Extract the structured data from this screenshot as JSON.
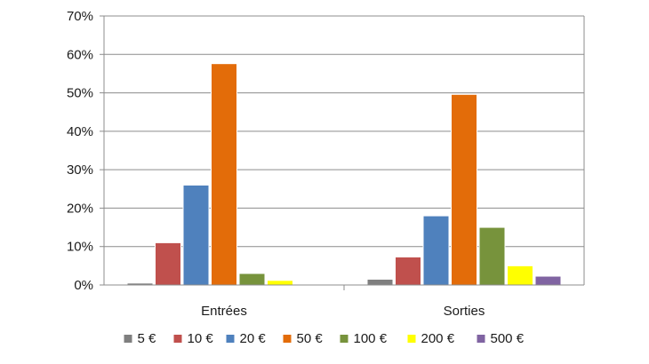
{
  "chart_data": {
    "type": "bar",
    "categories": [
      "Entrées",
      "Sorties"
    ],
    "series": [
      {
        "name": "5 €",
        "color": "#7f7f7f",
        "values": [
          0.5,
          1.5
        ]
      },
      {
        "name": "10 €",
        "color": "#c0504d",
        "values": [
          11,
          7.3
        ]
      },
      {
        "name": "20 €",
        "color": "#4f81bd",
        "values": [
          26,
          18
        ]
      },
      {
        "name": "50 €",
        "color": "#e36c09",
        "values": [
          57.6,
          49.6
        ]
      },
      {
        "name": "100 €",
        "color": "#77933c",
        "values": [
          3,
          15
        ]
      },
      {
        "name": "200 €",
        "color": "#ffff00",
        "values": [
          1.2,
          5
        ]
      },
      {
        "name": "500 €",
        "color": "#8064a2",
        "values": [
          0,
          2.3
        ]
      }
    ],
    "y_ticks": [
      "0%",
      "10%",
      "20%",
      "30%",
      "40%",
      "50%",
      "60%",
      "70%"
    ],
    "ylim": [
      0,
      70
    ],
    "y_unit": "%",
    "grid": true,
    "legend_position": "bottom",
    "title": "",
    "xlabel": "",
    "ylabel": ""
  }
}
